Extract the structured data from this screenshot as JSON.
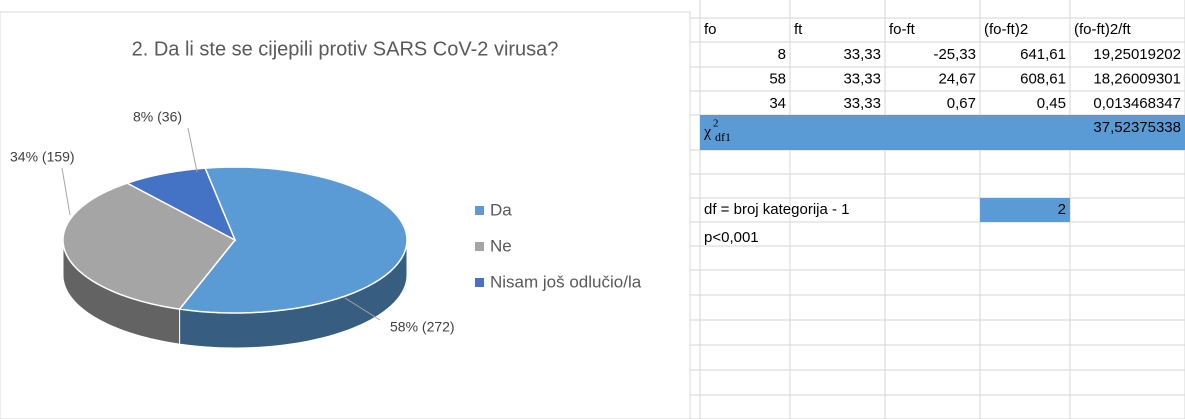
{
  "chart_data": {
    "type": "pie3d",
    "title": "2. Da li ste se cijepili protiv SARS CoV-2 virusa?",
    "categories": [
      "Da",
      "Ne",
      "Nisam još odlučio/la"
    ],
    "values": [
      58,
      34,
      8
    ],
    "value_labels": [
      "58% (272)",
      "34% (159)",
      "8% (36)"
    ],
    "colors": [
      "#5b9bd5",
      "#a5a5a5",
      "#4472c4"
    ],
    "legend": "right"
  },
  "table": {
    "header": [
      "fo",
      "ft",
      "fo-ft",
      "(fo-ft)2",
      "(fo-ft)2/ft"
    ],
    "rows": [
      [
        "8",
        "33,33",
        "-25,33",
        "641,61",
        "19,25019202"
      ],
      [
        "58",
        "33,33",
        "24,67",
        "608,61",
        "18,26009301"
      ],
      [
        "34",
        "33,33",
        "0,67",
        "0,45",
        "0,013468347"
      ]
    ],
    "chi": {
      "symbol": "χ",
      "sup": "2",
      "sub": "df1",
      "value": "37,52375338"
    },
    "df": {
      "label": "df = broj kategorija - 1",
      "value": "2"
    },
    "p": "p<0,001"
  }
}
